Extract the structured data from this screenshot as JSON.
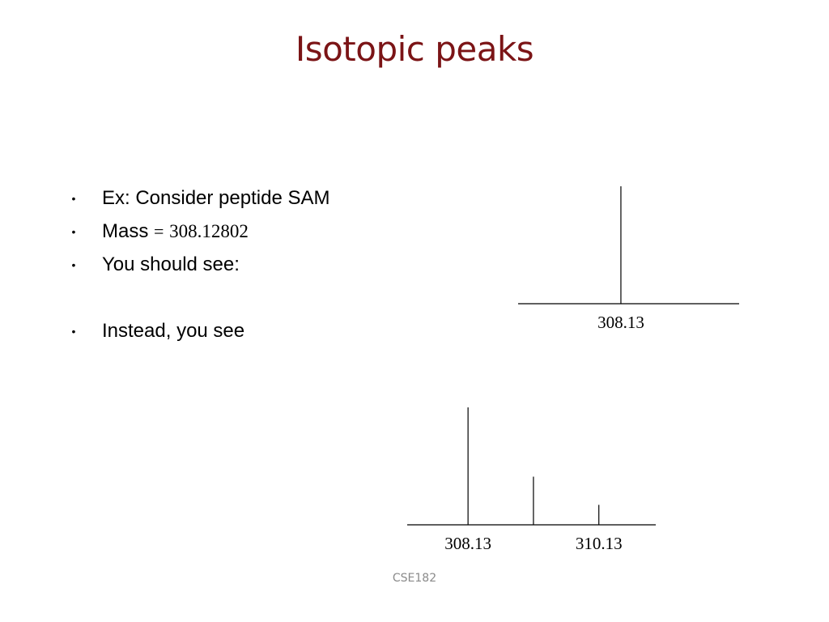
{
  "slide": {
    "title": "Isotopic peaks",
    "footer": "CSE182"
  },
  "bullets": [
    {
      "text": "Ex: Consider peptide SAM"
    },
    {
      "label": "Mass",
      "equals": "=",
      "value": "308.12802"
    },
    {
      "text": "You should see:"
    },
    {
      "text": "Instead, you see"
    }
  ],
  "bullet_symbol": "•",
  "chart_data": [
    {
      "type": "bar",
      "title": "",
      "tick_labels": [
        "308.13"
      ],
      "peaks": [
        {
          "x": 308.13,
          "intensity": 1.0
        }
      ],
      "xlim": [
        307.2,
        309.2
      ]
    },
    {
      "type": "bar",
      "title": "",
      "tick_labels": [
        "308.13",
        "310.13"
      ],
      "peaks": [
        {
          "x": 308.13,
          "intensity": 1.0
        },
        {
          "x": 309.13,
          "intensity": 0.41
        },
        {
          "x": 310.13,
          "intensity": 0.17
        }
      ],
      "xlim": [
        307.2,
        311.0
      ]
    }
  ]
}
